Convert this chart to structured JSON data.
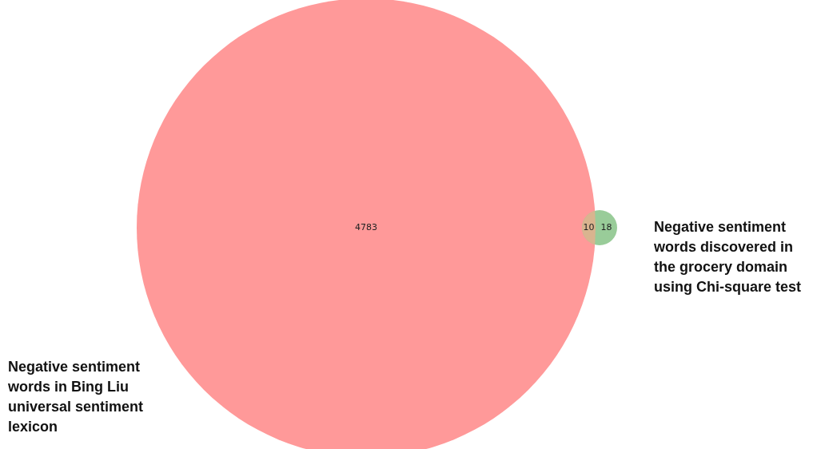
{
  "chart_data": {
    "type": "other",
    "categories": [
      null,
      null,
      null
    ],
    "values": [
      4783,
      10,
      18
    ],
    "colors": [
      "#ff9999",
      "#d9b48f",
      "#99cc99"
    ],
    "data_labels": true,
    "annotations": [
      "Negative sentiment words in Bing Liu universal sentiment lexicon",
      "Negative sentiment words discovered in the grocery domain using Chi-square test"
    ]
  }
}
